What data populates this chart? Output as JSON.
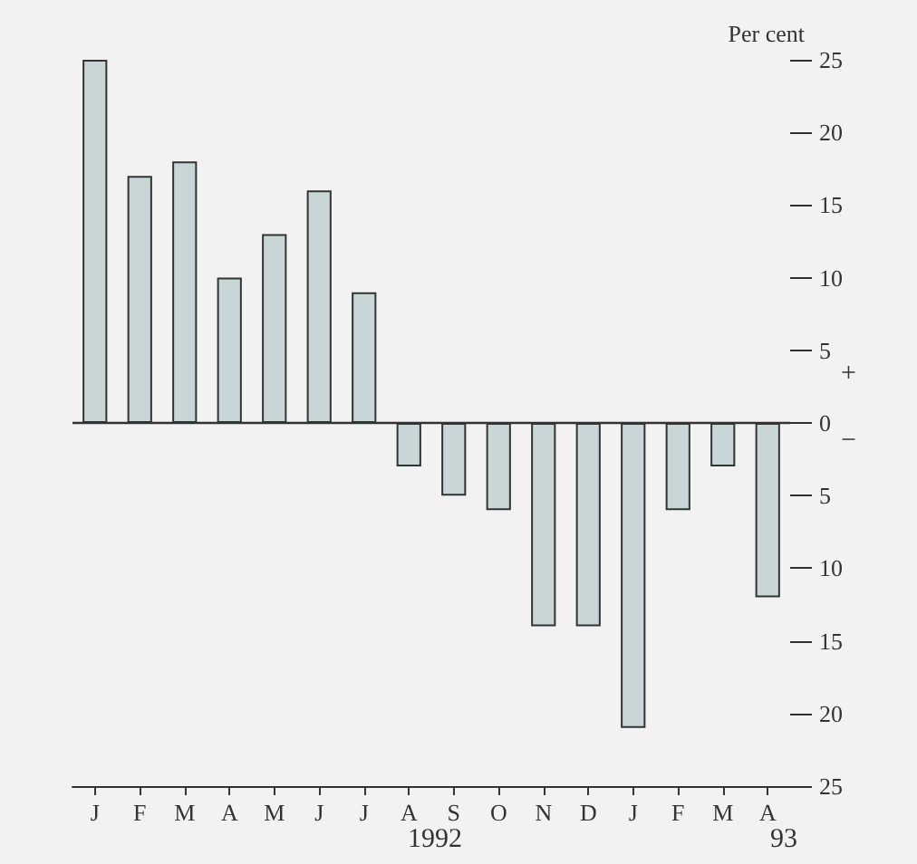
{
  "chart_data": {
    "type": "bar",
    "ylabel": "Per cent",
    "categories": [
      "J",
      "F",
      "M",
      "A",
      "M",
      "J",
      "J",
      "A",
      "S",
      "O",
      "N",
      "D",
      "J",
      "F",
      "M",
      "A"
    ],
    "values": [
      25,
      17,
      18,
      10,
      13,
      16,
      9,
      -3,
      -5,
      -6,
      -14,
      -14,
      -21,
      -6,
      -3,
      -12
    ],
    "color": "#c9d6d8",
    "ylim": [
      -25,
      25
    ],
    "yticks": [
      {
        "value": -25,
        "label": "25"
      },
      {
        "value": -20,
        "label": "20"
      },
      {
        "value": -15,
        "label": "15"
      },
      {
        "value": -10,
        "label": "10"
      },
      {
        "value": -5,
        "label": "5"
      },
      0,
      5,
      10,
      15,
      20,
      25
    ],
    "ref_lines": [
      {
        "axis": "y",
        "value": 0,
        "color": "#333333"
      }
    ],
    "annotations": [
      "+",
      "−",
      "1992",
      "93"
    ]
  }
}
